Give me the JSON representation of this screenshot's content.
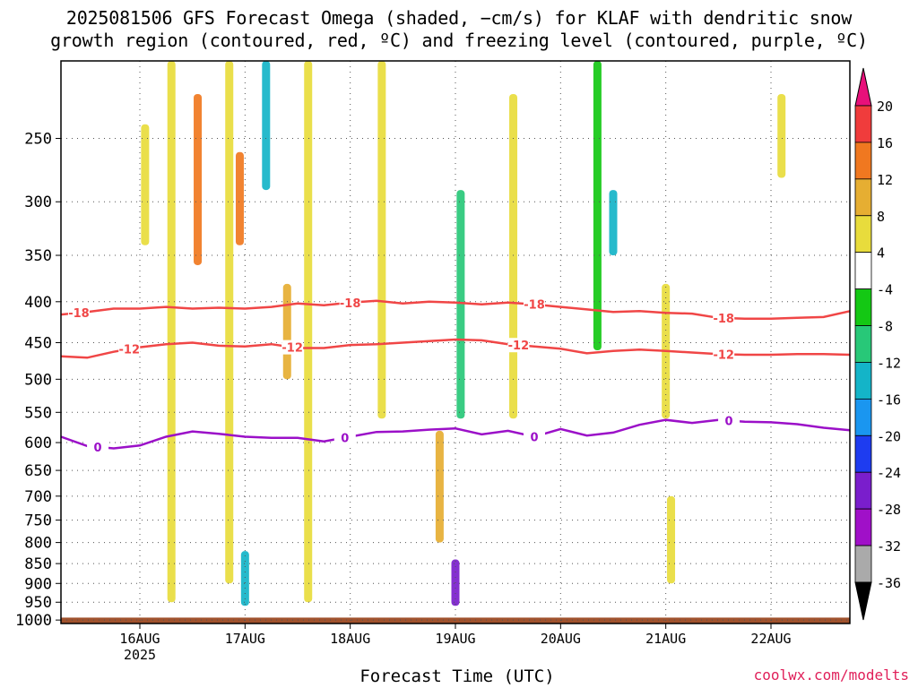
{
  "title_line1": "2025081506 GFS Forecast Omega (shaded, −cm/s) for KLAF with dendritic snow",
  "title_line2": "growth region (contoured, red, ºC) and freezing level (contoured, purple, ºC)",
  "credit": "coolwx.com/modelts",
  "chart_data": {
    "type": "heatmap",
    "title": "2025081506 GFS Forecast Omega (shaded, −cm/s) for KLAF with dendritic snow growth region (contoured, red, ºC) and freezing level (contoured, purple, ºC)",
    "xlabel": "Forecast Time (UTC)",
    "ylabel": "",
    "x_ticks": [
      "16AUG",
      "17AUG",
      "18AUG",
      "19AUG",
      "20AUG",
      "21AUG",
      "22AUG"
    ],
    "x_year_label": "2025",
    "x_range_days": [
      15.25,
      22.75
    ],
    "y_ticks": [
      250,
      300,
      350,
      400,
      450,
      500,
      550,
      600,
      650,
      700,
      750,
      800,
      850,
      900,
      950,
      1000
    ],
    "y_range_hpa": [
      1010,
      200
    ],
    "y_scale": "log-pressure (inverted)",
    "grid": true,
    "colorbar": {
      "labels": [
        "20",
        "16",
        "12",
        "8",
        "4",
        "-4",
        "-8",
        "-12",
        "-16",
        "-20",
        "-24",
        "-28",
        "-32",
        "-36"
      ],
      "levels": [
        20,
        16,
        12,
        8,
        4,
        -4,
        -8,
        -12,
        -16,
        -20,
        -24,
        -28,
        -32,
        -36
      ],
      "colors": [
        "#e8107a",
        "#f03c3c",
        "#f07820",
        "#e6ae32",
        "#e8dc3c",
        "#ffffff",
        "#14c814",
        "#28c878",
        "#14b4c8",
        "#1a96f0",
        "#1e3cf0",
        "#7a1ecc",
        "#a010c8",
        "#aaaaaa",
        "#000000"
      ]
    },
    "contours": [
      {
        "label": "-18",
        "color": "#f04646",
        "points": [
          [
            15.25,
            415
          ],
          [
            15.5,
            412
          ],
          [
            15.75,
            408
          ],
          [
            16.0,
            408
          ],
          [
            16.25,
            406
          ],
          [
            16.5,
            408
          ],
          [
            16.75,
            407
          ],
          [
            17.0,
            408
          ],
          [
            17.25,
            406
          ],
          [
            17.5,
            402
          ],
          [
            17.75,
            404
          ],
          [
            18.0,
            401
          ],
          [
            18.25,
            399
          ],
          [
            18.5,
            402
          ],
          [
            18.75,
            400
          ],
          [
            19.0,
            401
          ],
          [
            19.25,
            403
          ],
          [
            19.5,
            401
          ],
          [
            19.75,
            403
          ],
          [
            20.0,
            406
          ],
          [
            20.25,
            409
          ],
          [
            20.5,
            412
          ],
          [
            20.75,
            411
          ],
          [
            21.0,
            413
          ],
          [
            21.25,
            414
          ],
          [
            21.5,
            419
          ],
          [
            21.75,
            420
          ],
          [
            22.0,
            420
          ],
          [
            22.25,
            419
          ],
          [
            22.5,
            418
          ],
          [
            22.75,
            411
          ]
        ],
        "label_days": [
          15.42,
          18.0,
          19.75,
          21.55
        ]
      },
      {
        "label": "-12",
        "color": "#f04646",
        "points": [
          [
            15.25,
            468
          ],
          [
            15.5,
            470
          ],
          [
            15.75,
            462
          ],
          [
            16.0,
            456
          ],
          [
            16.25,
            452
          ],
          [
            16.5,
            450
          ],
          [
            16.75,
            454
          ],
          [
            17.0,
            455
          ],
          [
            17.25,
            452
          ],
          [
            17.5,
            457
          ],
          [
            17.75,
            457
          ],
          [
            18.0,
            453
          ],
          [
            18.25,
            452
          ],
          [
            18.5,
            450
          ],
          [
            18.75,
            448
          ],
          [
            19.0,
            446
          ],
          [
            19.25,
            447
          ],
          [
            19.5,
            452
          ],
          [
            19.75,
            455
          ],
          [
            20.0,
            458
          ],
          [
            20.25,
            464
          ],
          [
            20.5,
            461
          ],
          [
            20.75,
            459
          ],
          [
            21.0,
            461
          ],
          [
            21.25,
            463
          ],
          [
            21.5,
            465
          ],
          [
            21.75,
            466
          ],
          [
            22.0,
            466
          ],
          [
            22.25,
            465
          ],
          [
            22.5,
            465
          ],
          [
            22.75,
            466
          ]
        ],
        "label_days": [
          15.9,
          17.45,
          19.6,
          21.55
        ]
      },
      {
        "label": "0",
        "color": "#9b10c8",
        "points": [
          [
            15.25,
            590
          ],
          [
            15.5,
            606
          ],
          [
            15.75,
            610
          ],
          [
            16.0,
            605
          ],
          [
            16.25,
            590
          ],
          [
            16.5,
            581
          ],
          [
            16.75,
            585
          ],
          [
            17.0,
            590
          ],
          [
            17.25,
            592
          ],
          [
            17.5,
            592
          ],
          [
            17.75,
            598
          ],
          [
            18.0,
            590
          ],
          [
            18.25,
            582
          ],
          [
            18.5,
            581
          ],
          [
            18.75,
            578
          ],
          [
            19.0,
            576
          ],
          [
            19.25,
            586
          ],
          [
            19.5,
            580
          ],
          [
            19.75,
            590
          ],
          [
            20.0,
            577
          ],
          [
            20.25,
            588
          ],
          [
            20.5,
            583
          ],
          [
            20.75,
            570
          ],
          [
            21.0,
            562
          ],
          [
            21.25,
            567
          ],
          [
            21.5,
            562
          ],
          [
            21.75,
            565
          ],
          [
            22.0,
            566
          ],
          [
            22.25,
            569
          ],
          [
            22.5,
            575
          ],
          [
            22.75,
            579
          ]
        ],
        "label_days": [
          15.6,
          17.95,
          19.75,
          21.6
        ]
      }
    ],
    "omega_features": [
      {
        "day": 16.05,
        "p_top": 240,
        "p_bot": 340,
        "value": 6
      },
      {
        "day": 16.3,
        "p_top": 200,
        "p_bot": 950,
        "value": 6
      },
      {
        "day": 16.55,
        "p_top": 220,
        "p_bot": 360,
        "value": 12
      },
      {
        "day": 16.85,
        "p_top": 200,
        "p_bot": 900,
        "value": 6
      },
      {
        "day": 16.95,
        "p_top": 260,
        "p_bot": 340,
        "value": 14
      },
      {
        "day": 17.2,
        "p_top": 200,
        "p_bot": 290,
        "value": -14
      },
      {
        "day": 17.4,
        "p_top": 380,
        "p_bot": 500,
        "value": 10
      },
      {
        "day": 17.6,
        "p_top": 200,
        "p_bot": 950,
        "value": 6
      },
      {
        "day": 18.3,
        "p_top": 200,
        "p_bot": 560,
        "value": 6
      },
      {
        "day": 18.85,
        "p_top": 580,
        "p_bot": 800,
        "value": 10
      },
      {
        "day": 19.05,
        "p_top": 290,
        "p_bot": 560,
        "value": -10
      },
      {
        "day": 19.0,
        "p_top": 840,
        "p_bot": 960,
        "value": -28
      },
      {
        "day": 17.0,
        "p_top": 820,
        "p_bot": 960,
        "value": -14
      },
      {
        "day": 19.55,
        "p_top": 220,
        "p_bot": 560,
        "value": 6
      },
      {
        "day": 20.35,
        "p_top": 200,
        "p_bot": 460,
        "value": -6
      },
      {
        "day": 20.5,
        "p_top": 290,
        "p_bot": 350,
        "value": -14
      },
      {
        "day": 21.0,
        "p_top": 380,
        "p_bot": 560,
        "value": 6
      },
      {
        "day": 21.05,
        "p_top": 700,
        "p_bot": 900,
        "value": 6
      },
      {
        "day": 22.1,
        "p_top": 220,
        "p_bot": 280,
        "value": 6
      }
    ]
  }
}
